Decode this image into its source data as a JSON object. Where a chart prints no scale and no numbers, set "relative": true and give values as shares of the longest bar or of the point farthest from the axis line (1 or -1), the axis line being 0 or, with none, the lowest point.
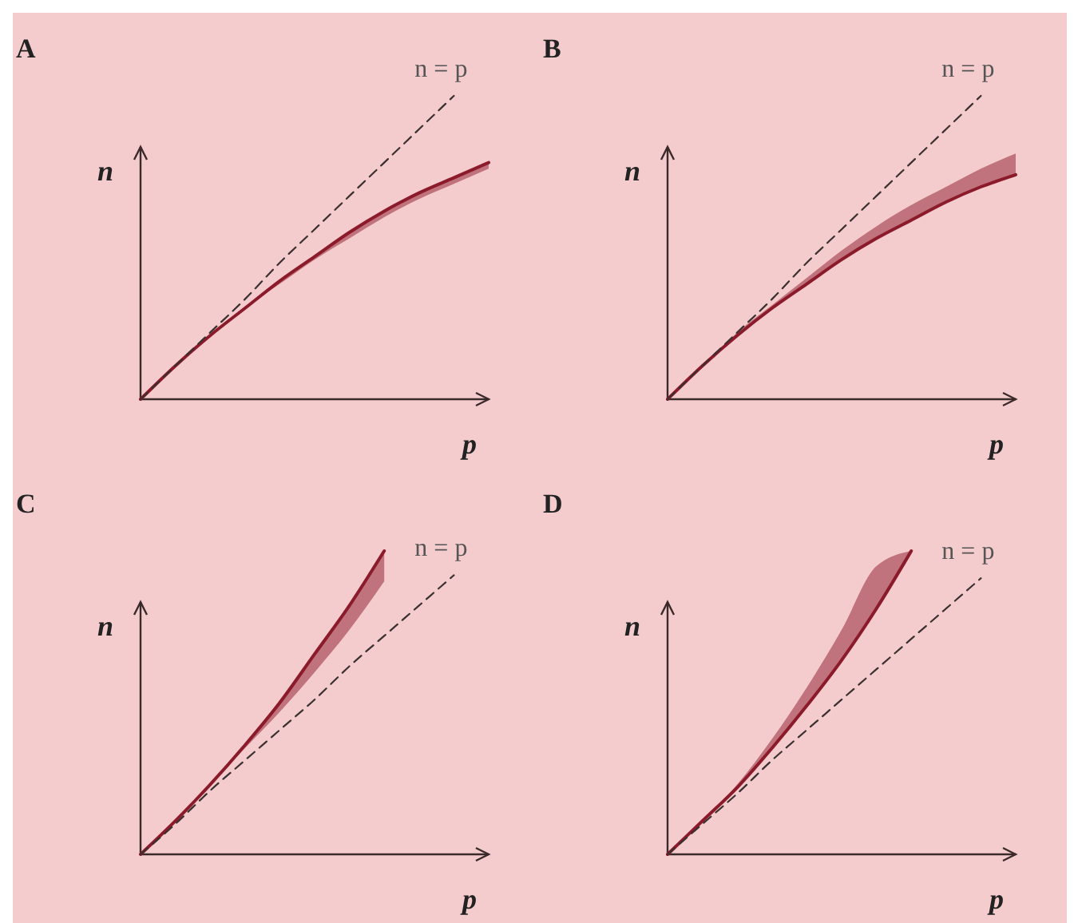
{
  "chart_data": [
    {
      "type": "line",
      "title": "A",
      "xlabel": "p",
      "ylabel": "n",
      "relative": true,
      "legend": false,
      "categories": [
        null,
        null,
        null,
        null,
        null,
        null,
        null,
        null,
        null,
        null,
        null
      ],
      "series": [
        {
          "color": "#8b1a2b",
          "values": [
            0,
            0.11,
            0.21,
            0.3,
            0.39,
            0.47,
            0.55,
            0.62,
            0.68,
            0.73,
            0.78
          ],
          "lower": [
            0,
            0.11,
            0.21,
            0.3,
            0.38,
            0.46,
            0.53,
            0.6,
            0.66,
            0.71,
            0.76
          ],
          "upper": [
            0,
            0.11,
            0.21,
            0.3,
            0.39,
            0.47,
            0.55,
            0.62,
            0.68,
            0.73,
            0.78
          ]
        },
        {
          "name": "n = p",
          "color": "#3a3030",
          "line_style": "dashed",
          "values": [
            0,
            0.11,
            0.22,
            0.33,
            0.45,
            0.56,
            0.67,
            0.78,
            0.89,
            1,
            null
          ]
        }
      ]
    },
    {
      "type": "line",
      "title": "B",
      "xlabel": "p",
      "ylabel": "n",
      "relative": true,
      "legend": false,
      "categories": [
        null,
        null,
        null,
        null,
        null,
        null,
        null,
        null,
        null,
        null,
        null
      ],
      "series": [
        {
          "color": "#8b1a2b",
          "values": [
            0,
            0.11,
            0.21,
            0.3,
            0.38,
            0.46,
            0.53,
            0.59,
            0.65,
            0.7,
            0.74
          ],
          "lower": [
            0,
            0.11,
            0.21,
            0.3,
            0.38,
            0.46,
            0.53,
            0.59,
            0.65,
            0.7,
            0.74
          ],
          "upper": [
            0,
            0.11,
            0.22,
            0.31,
            0.4,
            0.49,
            0.57,
            0.64,
            0.7,
            0.76,
            0.81
          ]
        },
        {
          "name": "n = p",
          "color": "#3a3030",
          "line_style": "dashed",
          "values": [
            0,
            0.11,
            0.22,
            0.33,
            0.45,
            0.56,
            0.67,
            0.78,
            0.89,
            1,
            null
          ]
        }
      ]
    },
    {
      "type": "line",
      "title": "C",
      "xlabel": "p",
      "ylabel": "n",
      "relative": true,
      "legend": false,
      "categories": [
        null,
        null,
        null,
        null,
        null,
        null,
        null,
        null,
        null,
        null,
        null
      ],
      "series": [
        {
          "color": "#8b1a2b",
          "values": [
            0,
            0.11,
            0.23,
            0.36,
            0.5,
            0.66,
            0.82,
            1.0,
            null,
            null,
            null
          ],
          "lower": [
            0,
            0.11,
            0.23,
            0.35,
            0.47,
            0.6,
            0.74,
            0.9,
            null,
            null,
            null
          ],
          "upper": [
            0,
            0.11,
            0.23,
            0.36,
            0.5,
            0.66,
            0.82,
            1.0,
            null,
            null,
            null
          ]
        },
        {
          "name": "n = p",
          "color": "#3a3030",
          "line_style": "dashed",
          "values": [
            0,
            0.1,
            0.21,
            0.31,
            0.41,
            0.51,
            0.62,
            0.72,
            0.82,
            0.92,
            null
          ]
        }
      ]
    },
    {
      "type": "line",
      "title": "D",
      "xlabel": "p",
      "ylabel": "n",
      "relative": true,
      "legend": false,
      "categories": [
        null,
        null,
        null,
        null,
        null,
        null,
        null,
        null,
        null,
        null,
        null
      ],
      "series": [
        {
          "color": "#8b1a2b",
          "values": [
            0,
            0.11,
            0.22,
            0.35,
            0.49,
            0.64,
            0.81,
            1.0,
            null,
            null,
            null
          ],
          "lower": [
            0,
            0.11,
            0.22,
            0.35,
            0.49,
            0.64,
            0.81,
            1.0,
            null,
            null,
            null
          ],
          "upper": [
            0,
            0.11,
            0.23,
            0.38,
            0.55,
            0.74,
            0.95,
            1.0,
            null,
            null,
            null
          ]
        },
        {
          "name": "n = p",
          "color": "#3a3030",
          "line_style": "dashed",
          "values": [
            0,
            0.1,
            0.2,
            0.31,
            0.41,
            0.51,
            0.61,
            0.71,
            0.81,
            0.91,
            null
          ]
        }
      ]
    }
  ]
}
